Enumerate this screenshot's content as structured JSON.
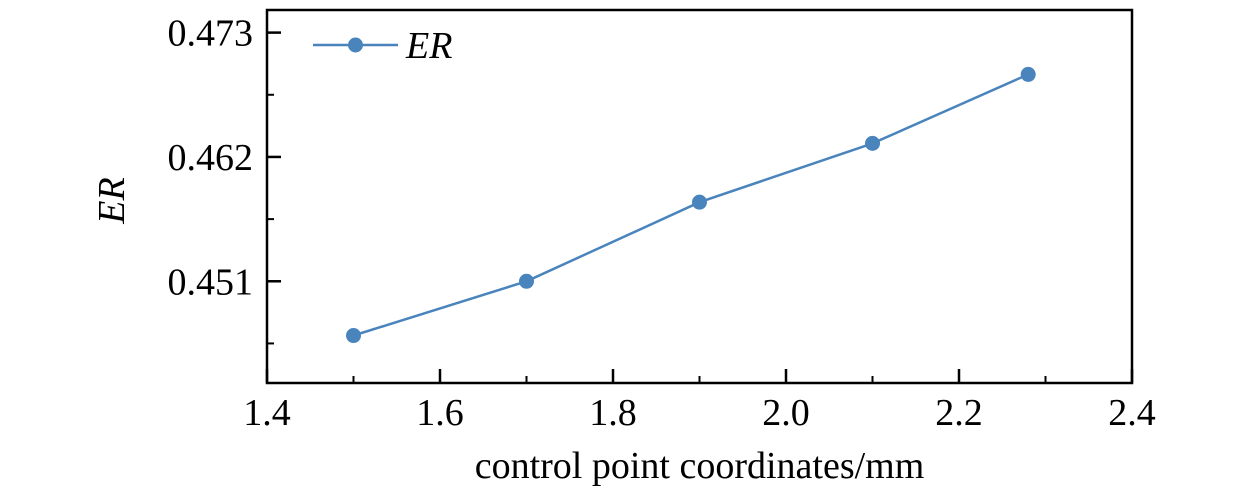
{
  "chart_data": {
    "type": "line",
    "title": "",
    "xlabel": "control point coordinates/mm",
    "ylabel": "ER",
    "xlim": [
      1.4,
      2.4
    ],
    "ylim": [
      0.442,
      0.475
    ],
    "xticks": [
      1.4,
      1.6,
      1.8,
      2.0,
      2.2,
      2.4
    ],
    "xtick_labels": [
      "1.4",
      "1.6",
      "1.8",
      "2.0",
      "2.2",
      "2.4"
    ],
    "yticks": [
      0.451,
      0.462,
      0.473
    ],
    "ytick_labels": [
      "0.451",
      "0.462",
      "0.473"
    ],
    "y_minor_ticks": [
      0.4455,
      0.4565,
      0.4675
    ],
    "grid": false,
    "legend_position": "top-left",
    "series": [
      {
        "name": "ER",
        "color": "#4a84bd",
        "marker": "circle",
        "x": [
          1.5,
          1.7,
          1.9,
          2.1,
          2.28
        ],
        "y": [
          0.4462,
          0.451,
          0.458,
          0.4632,
          0.4693
        ]
      }
    ]
  }
}
